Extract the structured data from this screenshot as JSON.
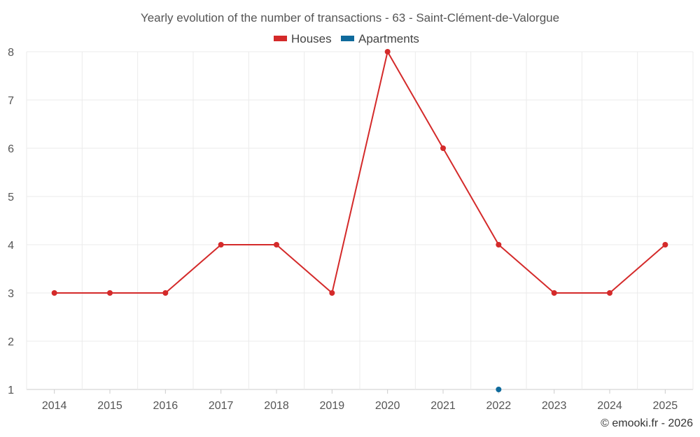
{
  "chart_data": {
    "type": "line",
    "title": "Yearly evolution of the number of transactions - 63 - Saint-Clément-de-Valorgue",
    "categories": [
      "2014",
      "2015",
      "2016",
      "2017",
      "2018",
      "2019",
      "2020",
      "2021",
      "2022",
      "2023",
      "2024",
      "2025"
    ],
    "ylim": [
      1,
      8
    ],
    "yticks": [
      "1",
      "2",
      "3",
      "4",
      "5",
      "6",
      "7",
      "8"
    ],
    "xlabel": "",
    "ylabel": "",
    "grid": true,
    "legend_position": "top-center",
    "series": [
      {
        "name": "Houses",
        "color": "#d42a2a",
        "values": [
          3,
          3,
          3,
          4,
          4,
          3,
          8,
          6,
          4,
          3,
          3,
          4
        ]
      },
      {
        "name": "Apartments",
        "color": "#0f6a9c",
        "values": [
          null,
          null,
          null,
          null,
          null,
          null,
          null,
          null,
          1,
          null,
          null,
          null
        ]
      }
    ]
  },
  "credit": "© emooki.fr - 2026"
}
